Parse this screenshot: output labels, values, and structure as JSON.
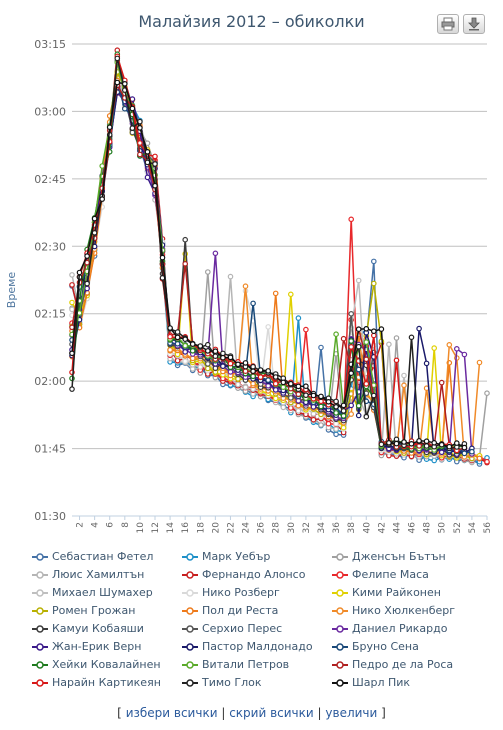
{
  "chart_data": {
    "type": "line",
    "title": "Малайзия 2012 – обиколки",
    "ylabel": "Време",
    "xlabel": "",
    "y_ticks": [
      "01:30",
      "01:45",
      "02:00",
      "02:15",
      "02:30",
      "02:45",
      "03:00",
      "03:15"
    ],
    "ylim_seconds": [
      90,
      195
    ],
    "x_ticks": [
      "2",
      "4",
      "6",
      "8",
      "10",
      "12",
      "14",
      "16",
      "18",
      "20",
      "22",
      "24",
      "26",
      "28",
      "30",
      "32",
      "34",
      "36",
      "38",
      "40",
      "42",
      "44",
      "46",
      "48",
      "50",
      "52",
      "54",
      "56"
    ],
    "x_range": [
      1,
      56
    ],
    "grid": true,
    "legend_position": "bottom",
    "series": [
      {
        "name": "Себастиан Фетел",
        "color": "#4572a7"
      },
      {
        "name": "Марк Уебър",
        "color": "#1e90c8"
      },
      {
        "name": "Дженсън Бътън",
        "color": "#a0a0a0"
      },
      {
        "name": "Люис Хамилтън",
        "color": "#b5b5b5"
      },
      {
        "name": "Фернандо Алонсо",
        "color": "#c71f1f"
      },
      {
        "name": "Фелипе Маса",
        "color": "#e8282b"
      },
      {
        "name": "Михаел Шумахер",
        "color": "#bfbfbf"
      },
      {
        "name": "Нико Розберг",
        "color": "#d9d9d9"
      },
      {
        "name": "Кими Райконен",
        "color": "#e0d000"
      },
      {
        "name": "Ромен Грожан",
        "color": "#b8b000"
      },
      {
        "name": "Пол ди Реста",
        "color": "#ee7a1a"
      },
      {
        "name": "Нико Хюлкенберг",
        "color": "#f08a28"
      },
      {
        "name": "Камуи Кобаяши",
        "color": "#3a3a3a"
      },
      {
        "name": "Серхио Перес",
        "color": "#555555"
      },
      {
        "name": "Даниел Рикардо",
        "color": "#6a2aa0"
      },
      {
        "name": "Жан-Ерик Верн",
        "color": "#3a1a8a"
      },
      {
        "name": "Пастор Малдонадо",
        "color": "#1a1a6a"
      },
      {
        "name": "Бруно Сена",
        "color": "#1a4a7a"
      },
      {
        "name": "Хейки Ковалайнен",
        "color": "#1e7a1e"
      },
      {
        "name": "Витали Петров",
        "color": "#5aaa2a"
      },
      {
        "name": "Педро де ла Роса",
        "color": "#b02020"
      },
      {
        "name": "Нарайн Картикеян",
        "color": "#d81818"
      },
      {
        "name": "Тимо Глок",
        "color": "#222222"
      },
      {
        "name": "Шарл Пик",
        "color": "#111111"
      }
    ]
  },
  "toolbar": {
    "print_icon": "printer-icon",
    "export_icon": "download-icon"
  },
  "footer": {
    "open_bracket": "[",
    "select_all": "избери всички",
    "sep1": "|",
    "hide_all": "скрий всички",
    "sep2": "|",
    "zoom": "увеличи",
    "close_bracket": "]"
  }
}
